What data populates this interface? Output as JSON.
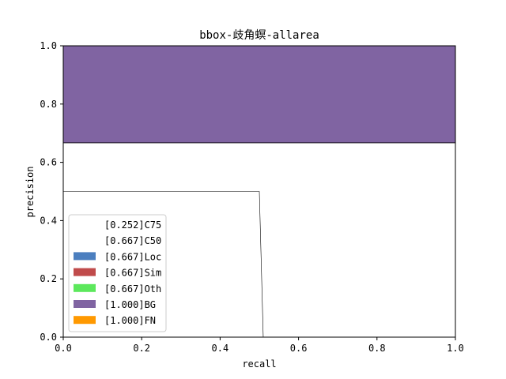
{
  "chart_data": {
    "type": "area",
    "title": "bbox-歧角螟-allarea",
    "xlabel": "recall",
    "ylabel": "precision",
    "xlim": [
      0,
      1
    ],
    "ylim": [
      0,
      1
    ],
    "x_ticks": [
      "0.0",
      "0.2",
      "0.4",
      "0.6",
      "0.8",
      "1.0"
    ],
    "y_ticks": [
      "0.0",
      "0.2",
      "0.4",
      "0.6",
      "0.8",
      "1.0"
    ],
    "grid": false,
    "legend_position": "lower-left",
    "series": [
      {
        "name": "[0.252]C75",
        "color": "#ffffff",
        "points": [
          [
            0,
            0.5
          ],
          [
            0.5,
            0.5
          ],
          [
            0.51,
            0
          ],
          [
            1,
            0
          ]
        ]
      },
      {
        "name": "[0.667]C50",
        "color": "#ffffff",
        "points": [
          [
            0,
            0.667
          ],
          [
            1,
            0.667
          ]
        ]
      },
      {
        "name": "[0.667]Loc",
        "color": "#4c7fbf",
        "points": [
          [
            0,
            0.667
          ],
          [
            1,
            0.667
          ]
        ]
      },
      {
        "name": "[0.667]Sim",
        "color": "#c04b4b",
        "points": [
          [
            0,
            0.667
          ],
          [
            1,
            0.667
          ]
        ]
      },
      {
        "name": "[0.667]Oth",
        "color": "#5ce85c",
        "points": [
          [
            0,
            0.667
          ],
          [
            1,
            0.667
          ]
        ]
      },
      {
        "name": "[1.000]BG",
        "color": "#8064a2",
        "points": [
          [
            0,
            1.0
          ],
          [
            1,
            1.0
          ]
        ]
      },
      {
        "name": "[1.000]FN",
        "color": "#ff9900",
        "points": [
          [
            0,
            1.0
          ],
          [
            1,
            1.0
          ]
        ]
      }
    ]
  }
}
